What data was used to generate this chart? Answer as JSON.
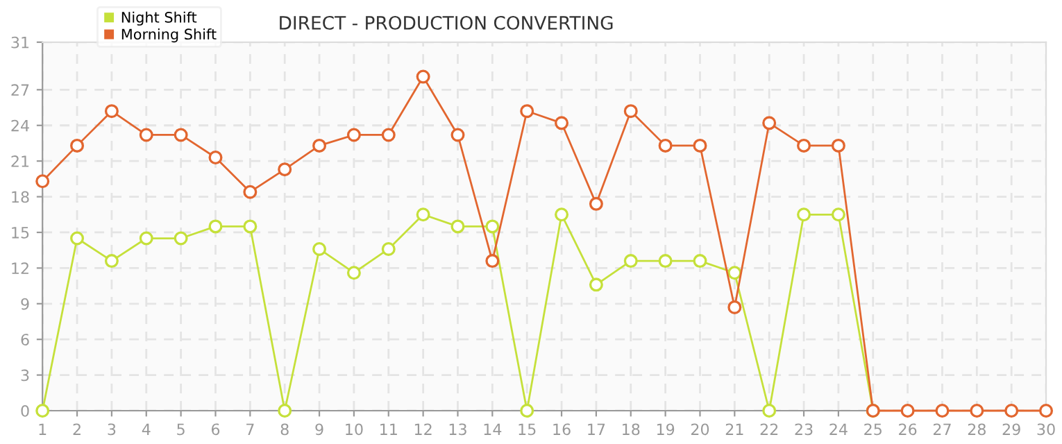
{
  "chart_data": {
    "type": "line",
    "title": "DIRECT - PRODUCTION CONVERTING",
    "x": [
      1,
      2,
      3,
      4,
      5,
      6,
      7,
      8,
      9,
      10,
      11,
      12,
      13,
      14,
      15,
      16,
      17,
      18,
      19,
      20,
      21,
      22,
      23,
      24,
      25,
      26,
      27,
      28,
      29,
      30
    ],
    "series": [
      {
        "name": "Night Shift",
        "color": "#c5e03a",
        "values": [
          0,
          14.5,
          12.6,
          14.5,
          14.5,
          15.5,
          15.5,
          0,
          13.6,
          11.6,
          13.6,
          16.5,
          15.5,
          15.5,
          0,
          16.5,
          10.6,
          12.6,
          12.6,
          12.6,
          11.6,
          0,
          16.5,
          16.5,
          0,
          null,
          null,
          null,
          null,
          null
        ]
      },
      {
        "name": "Morning Shift",
        "color": "#e2662f",
        "values": [
          19.3,
          22.3,
          25.2,
          23.2,
          23.2,
          21.3,
          18.4,
          20.3,
          22.3,
          23.2,
          23.2,
          28.1,
          23.2,
          12.6,
          25.2,
          24.2,
          17.4,
          25.2,
          22.3,
          22.3,
          8.7,
          24.2,
          22.3,
          22.3,
          0,
          0,
          0,
          0,
          0,
          0
        ]
      }
    ],
    "xlim": [
      1,
      30
    ],
    "xticks": [
      1,
      2,
      3,
      4,
      5,
      6,
      7,
      8,
      9,
      10,
      11,
      12,
      13,
      14,
      15,
      16,
      17,
      18,
      19,
      20,
      21,
      22,
      23,
      24,
      25,
      26,
      27,
      28,
      29,
      30
    ],
    "ylim": [
      0,
      31
    ],
    "yticks": [
      0,
      3,
      6,
      9,
      12,
      15,
      18,
      21,
      24,
      27,
      31
    ],
    "grid": true,
    "legend": "top left",
    "marker": "circle",
    "line_style": "solid"
  }
}
